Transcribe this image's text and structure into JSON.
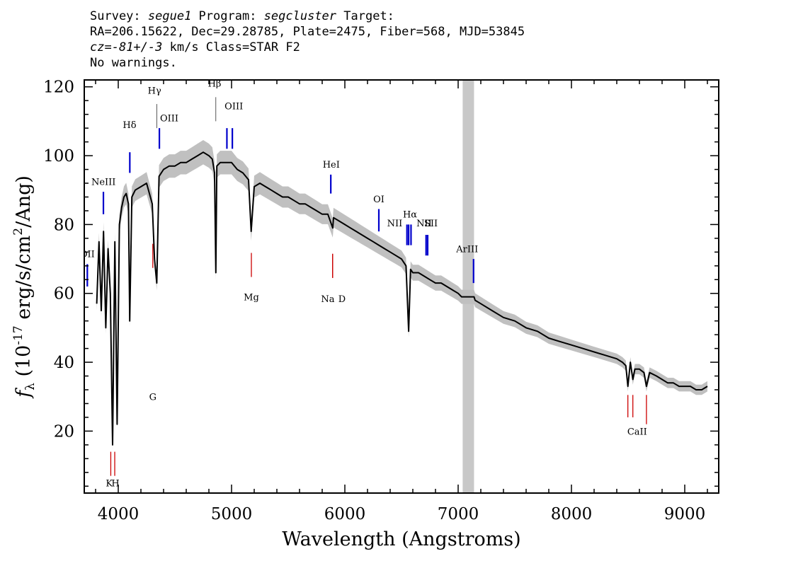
{
  "header": {
    "line1_prefix": "Survey: ",
    "survey": "segue1",
    "line1_mid": " Program: ",
    "program": "segcluster",
    "line1_suffix": " Target:",
    "line2": "RA=206.15622, Dec=29.28785, Plate=2475, Fiber=568, MJD=53845",
    "line3_prefix": "cz=",
    "cz": "-81+/-3",
    "line3_suffix": " km/s Class=STAR F2",
    "line4": "No warnings."
  },
  "chart_data": {
    "type": "line",
    "xlabel": "Wavelength (Angstroms)",
    "ylabel": "f_λ (10^-17 erg/s/cm^2/Ang)",
    "xlim": [
      3700,
      9300
    ],
    "ylim": [
      2,
      122
    ],
    "x_ticks": [
      4000,
      5000,
      6000,
      7000,
      8000,
      9000
    ],
    "y_ticks": [
      20,
      40,
      60,
      80,
      100,
      120
    ],
    "masked_band": [
      7040,
      7140
    ],
    "series": [
      {
        "x": [
          3810,
          3830,
          3850,
          3870,
          3890,
          3910,
          3930,
          3950,
          3970,
          3990,
          4010,
          4030,
          4050,
          4070,
          4090,
          4101,
          4120,
          4150,
          4200,
          4250,
          4300,
          4320,
          4340,
          4360,
          4400,
          4450,
          4500,
          4550,
          4600,
          4650,
          4700,
          4750,
          4800,
          4830,
          4850,
          4861,
          4870,
          4900,
          4950,
          5000,
          5050,
          5100,
          5150,
          5173,
          5200,
          5250,
          5300,
          5350,
          5400,
          5450,
          5500,
          5550,
          5600,
          5650,
          5700,
          5750,
          5800,
          5850,
          5893,
          5900,
          5950,
          6000,
          6050,
          6100,
          6150,
          6200,
          6250,
          6300,
          6350,
          6400,
          6450,
          6500,
          6540,
          6563,
          6580,
          6600,
          6650,
          6700,
          6750,
          6800,
          6850,
          6900,
          6950,
          7000,
          7030,
          7040,
          7140,
          7150,
          7200,
          7300,
          7400,
          7500,
          7600,
          7700,
          7800,
          7900,
          8000,
          8100,
          8200,
          8300,
          8400,
          8450,
          8480,
          8498,
          8520,
          8542,
          8560,
          8600,
          8640,
          8662,
          8690,
          8750,
          8800,
          8850,
          8900,
          8950,
          9000,
          9050,
          9100,
          9150,
          9200
        ],
        "y": [
          57,
          75,
          55,
          78,
          50,
          73,
          60,
          16,
          75,
          22,
          80,
          85,
          88,
          89,
          86,
          52,
          88,
          90,
          91,
          92,
          86,
          70,
          63,
          94,
          96,
          97,
          97,
          98,
          98,
          99,
          100,
          101,
          100,
          99,
          95,
          66,
          97,
          98,
          98,
          98,
          96,
          95,
          93,
          78,
          91,
          92,
          91,
          90,
          89,
          88,
          88,
          87,
          86,
          86,
          85,
          84,
          83,
          83,
          79,
          82,
          81,
          80,
          79,
          78,
          77,
          76,
          75,
          74,
          73,
          72,
          71,
          70,
          68,
          49,
          67,
          66,
          66,
          65,
          64,
          63,
          63,
          62,
          61,
          60,
          59,
          59,
          59,
          58,
          57,
          55,
          53,
          52,
          50,
          49,
          47,
          46,
          45,
          44,
          43,
          42,
          41,
          40,
          39,
          33,
          40,
          35,
          38,
          38,
          37,
          33,
          37,
          36,
          35,
          34,
          34,
          33,
          33,
          33,
          32,
          32,
          33
        ]
      }
    ],
    "absorption_lines": [
      {
        "label": "K",
        "x": 3934
      },
      {
        "label": "H",
        "x": 3969
      },
      {
        "label": "G",
        "x": 4305
      },
      {
        "label": "Mg",
        "x": 5175
      },
      {
        "label": "Na",
        "x": 5892
      },
      {
        "label": "D",
        "x": 5892
      },
      {
        "label": "CaII",
        "x": 8498
      },
      {
        "label": "",
        "x": 8542
      },
      {
        "label": "",
        "x": 8662
      }
    ],
    "emission_lines": [
      {
        "label": "OII",
        "x": 3727
      },
      {
        "label": "NeIII",
        "x": 3869
      },
      {
        "label": "Hδ",
        "x": 4102
      },
      {
        "label": "Hγ",
        "x": 4340
      },
      {
        "label": "OIII",
        "x": 4363
      },
      {
        "label": "Hβ",
        "x": 4861
      },
      {
        "label": "OIII",
        "x": 4959
      },
      {
        "label": "",
        "x": 5007
      },
      {
        "label": "HeI",
        "x": 5876
      },
      {
        "label": "OI",
        "x": 6300
      },
      {
        "label": "NII",
        "x": 6548
      },
      {
        "label": "Hα",
        "x": 6563
      },
      {
        "label": "",
        "x": 6584
      },
      {
        "label": "NII",
        "x": 6717
      },
      {
        "label": "SII",
        "x": 6731
      },
      {
        "label": "ArIII",
        "x": 7136
      }
    ],
    "colors": {
      "flux": "#000000",
      "error_band": "#c0c0c0",
      "masked_band": "#c8c8c8",
      "absorption_marker": "#cc0000",
      "emission_marker": "#0000cc"
    }
  }
}
